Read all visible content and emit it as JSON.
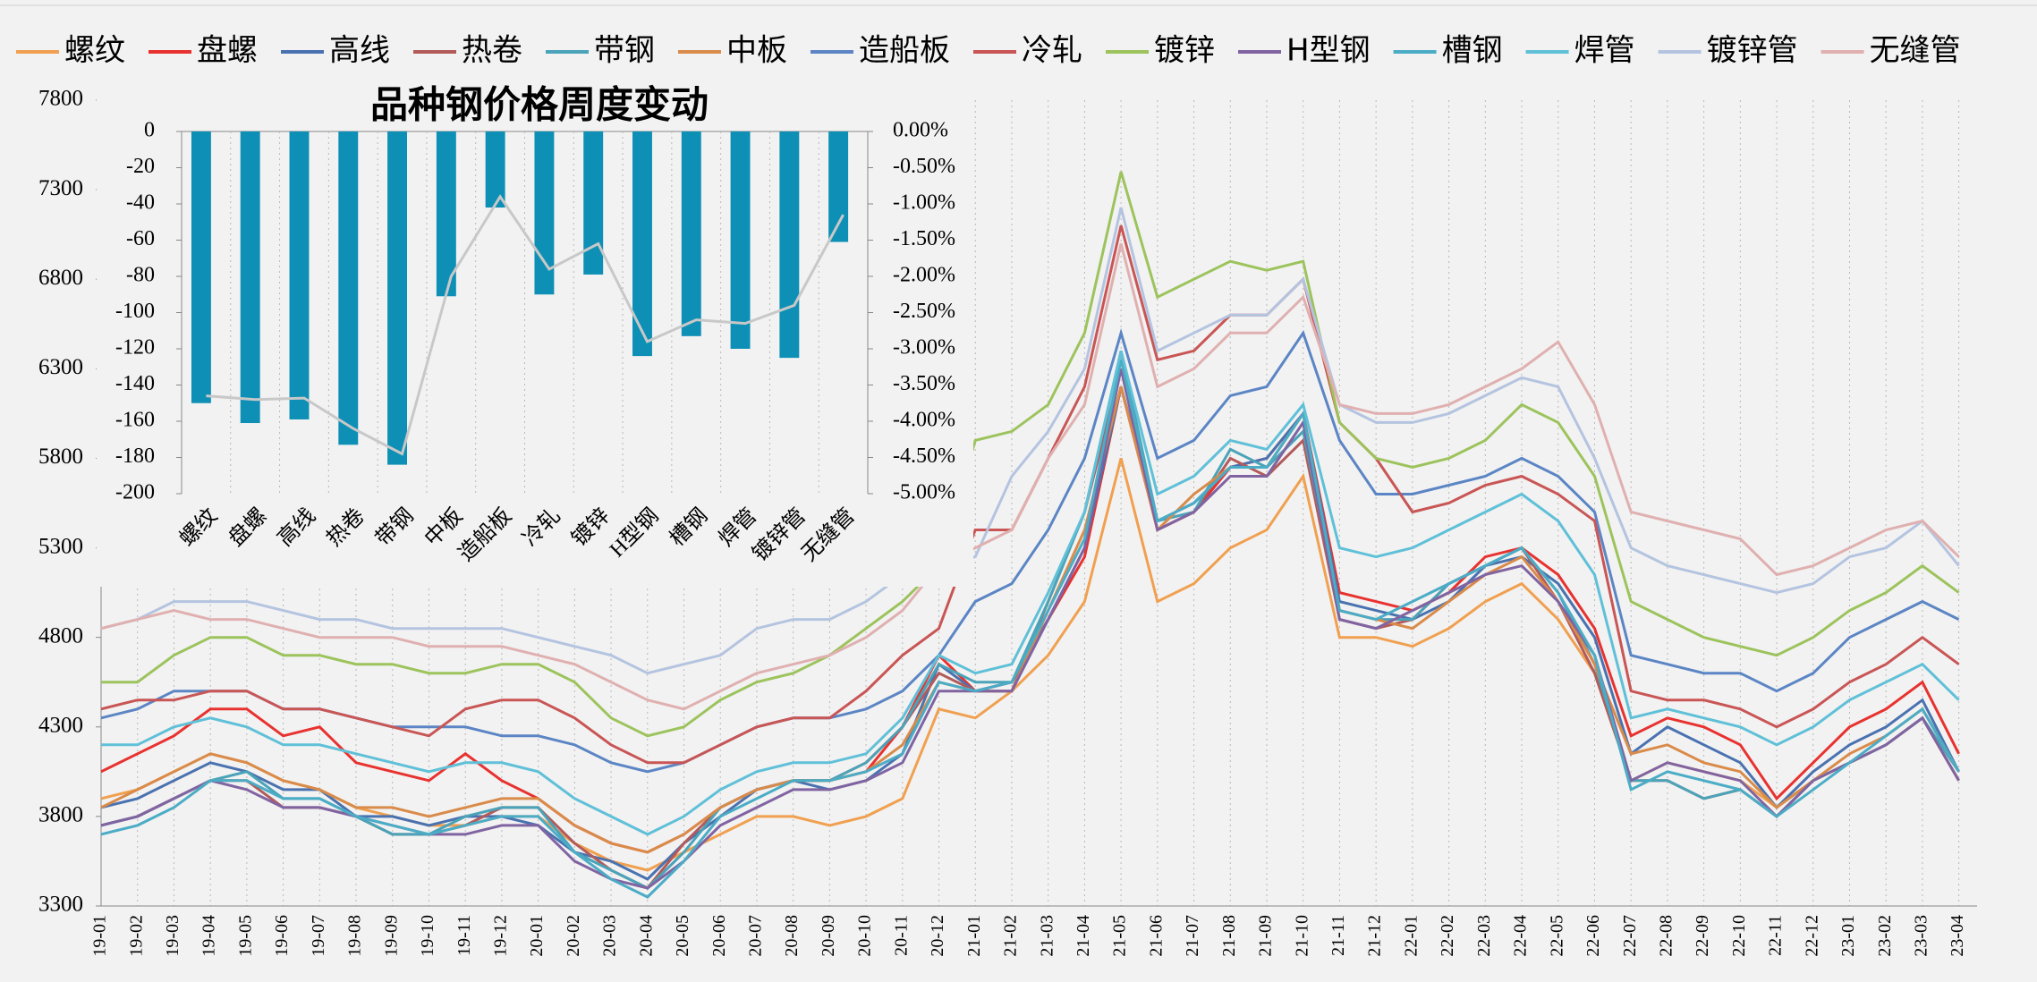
{
  "chart_data": [
    {
      "type": "line",
      "categories": [
        "19-01",
        "19-02",
        "19-03",
        "19-04",
        "19-05",
        "19-06",
        "19-07",
        "19-08",
        "19-09",
        "19-10",
        "19-11",
        "19-12",
        "20-01",
        "20-02",
        "20-03",
        "20-04",
        "20-05",
        "20-06",
        "20-07",
        "20-08",
        "20-09",
        "20-10",
        "20-11",
        "20-12",
        "21-01",
        "21-02",
        "21-03",
        "21-04",
        "21-05",
        "21-06",
        "21-07",
        "21-08",
        "21-09",
        "21-10",
        "21-11",
        "21-12",
        "22-01",
        "22-02",
        "22-03",
        "22-04",
        "22-05",
        "22-06",
        "22-07",
        "22-08",
        "22-09",
        "22-10",
        "22-11",
        "22-12",
        "23-01",
        "23-02",
        "23-03",
        "23-04"
      ],
      "ylim": [
        3300,
        7800
      ],
      "yticks": [
        3300,
        3800,
        4300,
        4800,
        5300,
        5800,
        6300,
        6800,
        7300,
        7800
      ],
      "series": [
        {
          "name": "螺纹",
          "color": "#f0a050",
          "values": [
            3900,
            3950,
            4050,
            4150,
            4100,
            4000,
            3950,
            3850,
            3800,
            3750,
            3750,
            3800,
            3800,
            3650,
            3550,
            3500,
            3600,
            3700,
            3800,
            3800,
            3750,
            3800,
            3900,
            4400,
            4350,
            4500,
            4700,
            5000,
            5800,
            5000,
            5100,
            5300,
            5400,
            5700,
            4800,
            4800,
            4750,
            4850,
            5000,
            5100,
            4900,
            4600,
            4000,
            4100,
            4050,
            4000,
            3850,
            4000,
            4100,
            4200,
            4350,
            4000
          ]
        },
        {
          "name": "盘螺",
          "color": "#e8322f",
          "values": [
            4050,
            4150,
            4250,
            4400,
            4400,
            4250,
            4300,
            4100,
            4050,
            4000,
            4150,
            4000,
            3900,
            3750,
            3650,
            3600,
            3700,
            3850,
            3950,
            4000,
            4000,
            4050,
            4300,
            4700,
            4500,
            4550,
            4900,
            5250,
            6200,
            5400,
            5500,
            5750,
            5800,
            6050,
            5050,
            5000,
            4950,
            5050,
            5250,
            5300,
            5150,
            4850,
            4250,
            4350,
            4300,
            4200,
            3900,
            4100,
            4300,
            4400,
            4550,
            4150
          ]
        },
        {
          "name": "高线",
          "color": "#4a72b0",
          "values": [
            3850,
            3900,
            4000,
            4100,
            4050,
            3950,
            3950,
            3800,
            3800,
            3750,
            3800,
            3800,
            3750,
            3600,
            3550,
            3450,
            3650,
            3800,
            3950,
            4000,
            3950,
            4000,
            4150,
            4650,
            4500,
            4550,
            4900,
            5300,
            6200,
            5450,
            5550,
            5750,
            5800,
            6050,
            5000,
            4950,
            4900,
            5000,
            5200,
            5250,
            5100,
            4800,
            4150,
            4300,
            4200,
            4100,
            3850,
            4050,
            4200,
            4300,
            4450,
            4050
          ]
        },
        {
          "name": "热卷",
          "color": "#b35a5a",
          "values": [
            3750,
            3800,
            3900,
            4000,
            4000,
            3850,
            3850,
            3800,
            3700,
            3700,
            3750,
            3850,
            3850,
            3650,
            3500,
            3400,
            3650,
            3850,
            3950,
            4000,
            4000,
            4100,
            4300,
            4600,
            4500,
            4500,
            5000,
            5500,
            6300,
            5400,
            5500,
            5800,
            5700,
            5900,
            4900,
            4850,
            4900,
            5100,
            5200,
            5300,
            5000,
            4600,
            4000,
            4000,
            3900,
            3950,
            3800,
            4000,
            4100,
            4200,
            4350,
            4000
          ]
        },
        {
          "name": "带钢",
          "color": "#4aa3b8",
          "values": [
            3750,
            3800,
            3900,
            4000,
            4050,
            3900,
            3900,
            3800,
            3700,
            3700,
            3800,
            3850,
            3850,
            3600,
            3500,
            3400,
            3600,
            3850,
            3950,
            4000,
            4000,
            4100,
            4300,
            4650,
            4550,
            4550,
            5000,
            5500,
            6400,
            5450,
            5500,
            5850,
            5750,
            5950,
            4950,
            4900,
            4900,
            5100,
            5200,
            5300,
            5050,
            4650,
            4000,
            4000,
            3900,
            3950,
            3800,
            4000,
            4100,
            4200,
            4350,
            4050
          ]
        },
        {
          "name": "中板",
          "color": "#d98b4a",
          "values": [
            3850,
            3950,
            4050,
            4150,
            4100,
            4000,
            3950,
            3850,
            3850,
            3800,
            3850,
            3900,
            3900,
            3750,
            3650,
            3600,
            3700,
            3850,
            3950,
            4000,
            4000,
            4050,
            4200,
            4550,
            4500,
            4500,
            4950,
            5400,
            6200,
            5400,
            5600,
            5750,
            5750,
            6050,
            4950,
            4900,
            4850,
            5000,
            5150,
            5250,
            5000,
            4650,
            4150,
            4200,
            4100,
            4050,
            3850,
            4000,
            4150,
            4250,
            4400,
            4050
          ]
        },
        {
          "name": "造船板",
          "color": "#5b85c4",
          "values": [
            4350,
            4400,
            4500,
            4500,
            4500,
            4400,
            4400,
            4350,
            4300,
            4300,
            4300,
            4250,
            4250,
            4200,
            4100,
            4050,
            4100,
            4200,
            4300,
            4350,
            4350,
            4400,
            4500,
            4700,
            5000,
            5100,
            5400,
            5800,
            6500,
            5800,
            5900,
            6150,
            6200,
            6500,
            5900,
            5600,
            5600,
            5650,
            5700,
            5800,
            5700,
            5500,
            4700,
            4650,
            4600,
            4600,
            4500,
            4600,
            4800,
            4900,
            5000,
            4900
          ]
        },
        {
          "name": "冷轧",
          "color": "#c95555",
          "values": [
            4400,
            4450,
            4450,
            4500,
            4500,
            4400,
            4400,
            4350,
            4300,
            4250,
            4400,
            4450,
            4450,
            4350,
            4200,
            4100,
            4100,
            4200,
            4300,
            4350,
            4350,
            4500,
            4700,
            4850,
            5400,
            5400,
            5800,
            6200,
            7100,
            6350,
            6400,
            6600,
            6600,
            6800,
            6000,
            5800,
            5500,
            5550,
            5650,
            5700,
            5600,
            5450,
            4500,
            4450,
            4450,
            4400,
            4300,
            4400,
            4550,
            4650,
            4800,
            4650
          ]
        },
        {
          "name": "镀锌",
          "color": "#9cc35c",
          "values": [
            4550,
            4550,
            4700,
            4800,
            4800,
            4700,
            4700,
            4650,
            4650,
            4600,
            4600,
            4650,
            4650,
            4550,
            4350,
            4250,
            4300,
            4450,
            4550,
            4600,
            4700,
            4850,
            5000,
            5200,
            5900,
            5950,
            6100,
            6500,
            7400,
            6700,
            6800,
            6900,
            6850,
            6900,
            6000,
            5800,
            5750,
            5800,
            5900,
            6100,
            6000,
            5700,
            5000,
            4900,
            4800,
            4750,
            4700,
            4800,
            4950,
            5050,
            5200,
            5050
          ]
        },
        {
          "name": "H型钢",
          "color": "#8064a2",
          "values": [
            3750,
            3800,
            3900,
            4000,
            3950,
            3850,
            3850,
            3800,
            3750,
            3700,
            3700,
            3750,
            3750,
            3550,
            3450,
            3400,
            3550,
            3750,
            3850,
            3950,
            3950,
            4000,
            4100,
            4500,
            4500,
            4500,
            4900,
            5300,
            6300,
            5400,
            5500,
            5700,
            5700,
            6000,
            4900,
            4850,
            4950,
            5050,
            5150,
            5200,
            5000,
            4700,
            4000,
            4100,
            4050,
            4000,
            3800,
            4000,
            4100,
            4200,
            4350,
            4000
          ]
        },
        {
          "name": "槽钢",
          "color": "#4bacc6",
          "values": [
            3700,
            3750,
            3850,
            4000,
            4000,
            3900,
            3900,
            3800,
            3750,
            3700,
            3750,
            3800,
            3800,
            3600,
            3450,
            3350,
            3550,
            3800,
            3900,
            4000,
            4000,
            4050,
            4150,
            4550,
            4500,
            4550,
            4950,
            5350,
            6350,
            5450,
            5550,
            5750,
            5750,
            6050,
            4950,
            4900,
            5000,
            5100,
            5200,
            5300,
            5050,
            4700,
            3950,
            4050,
            4000,
            3950,
            3800,
            3950,
            4100,
            4250,
            4400,
            4050
          ]
        },
        {
          "name": "焊管",
          "color": "#5fc0d8",
          "values": [
            4200,
            4200,
            4300,
            4350,
            4300,
            4200,
            4200,
            4150,
            4100,
            4050,
            4100,
            4100,
            4050,
            3900,
            3800,
            3700,
            3800,
            3950,
            4050,
            4100,
            4100,
            4150,
            4350,
            4700,
            4600,
            4650,
            5050,
            5500,
            6400,
            5600,
            5700,
            5900,
            5850,
            6100,
            5300,
            5250,
            5300,
            5400,
            5500,
            5600,
            5450,
            5150,
            4350,
            4400,
            4350,
            4300,
            4200,
            4300,
            4450,
            4550,
            4650,
            4450
          ]
        },
        {
          "name": "镀锌管",
          "color": "#b4c4e0",
          "values": [
            4850,
            4900,
            5000,
            5000,
            5000,
            4950,
            4900,
            4900,
            4850,
            4850,
            4850,
            4850,
            4800,
            4750,
            4700,
            4600,
            4650,
            4700,
            4850,
            4900,
            4900,
            5000,
            5150,
            5200,
            5250,
            5700,
            5950,
            6300,
            7200,
            6400,
            6500,
            6600,
            6600,
            6800,
            6100,
            6000,
            6000,
            6050,
            6150,
            6250,
            6200,
            5800,
            5300,
            5200,
            5150,
            5100,
            5050,
            5100,
            5250,
            5300,
            5450,
            5200
          ]
        },
        {
          "name": "无缝管",
          "color": "#e0b0b0",
          "values": [
            4850,
            4900,
            4950,
            4900,
            4900,
            4850,
            4800,
            4800,
            4800,
            4750,
            4750,
            4750,
            4700,
            4650,
            4550,
            4450,
            4400,
            4500,
            4600,
            4650,
            4700,
            4800,
            4950,
            5200,
            5300,
            5400,
            5800,
            6100,
            7000,
            6200,
            6300,
            6500,
            6500,
            6700,
            6100,
            6050,
            6050,
            6100,
            6200,
            6300,
            6450,
            6100,
            5500,
            5450,
            5400,
            5350,
            5150,
            5200,
            5300,
            5400,
            5450,
            5250
          ]
        }
      ]
    },
    {
      "type": "bar",
      "title": "品种钢价格周度变动",
      "categories": [
        "螺纹",
        "盘螺",
        "高线",
        "热卷",
        "带钢",
        "中板",
        "造船板",
        "冷轧",
        "镀锌",
        "H型钢",
        "槽钢",
        "焊管",
        "镀锌管",
        "无缝管"
      ],
      "ylim": [
        -200,
        0
      ],
      "yticks": [
        0,
        -20,
        -40,
        -60,
        -80,
        -100,
        -120,
        -140,
        -160,
        -180,
        -200
      ],
      "y2lim": [
        -5,
        0
      ],
      "y2ticks": [
        {
          "value": 0,
          "label": "0.00%"
        },
        {
          "value": -0.5,
          "label": "-0.50%"
        },
        {
          "value": -1,
          "label": "-1.00%"
        },
        {
          "value": -1.5,
          "label": "-1.50%"
        },
        {
          "value": -2,
          "label": "-2.00%"
        },
        {
          "value": -2.5,
          "label": "-2.50%"
        },
        {
          "value": -3,
          "label": "-3.00%"
        },
        {
          "value": -3.5,
          "label": "-3.50%"
        },
        {
          "value": -4,
          "label": "-4.00%"
        },
        {
          "value": -4.5,
          "label": "-4.50%"
        },
        {
          "value": -5,
          "label": "-5.00%"
        }
      ],
      "series": [
        {
          "color": "#0e8fb5",
          "values": [
            -150,
            -161,
            -159,
            -173,
            -184,
            -91,
            -42,
            -90,
            -79,
            -124,
            -113,
            -120,
            -125,
            -61
          ]
        },
        {
          "color": "#c8c8c8",
          "axis": "y2",
          "values": [
            -3.65,
            -3.7,
            -3.68,
            -4.1,
            -4.45,
            -2.0,
            -0.9,
            -1.9,
            -1.55,
            -2.9,
            -2.6,
            -2.65,
            -2.4,
            -1.15
          ]
        }
      ]
    }
  ]
}
